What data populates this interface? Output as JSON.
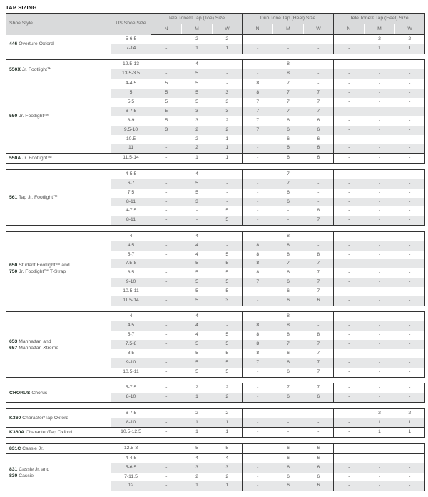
{
  "title": "TAP SIZING",
  "header": {
    "style": "Shoe Style",
    "size": "US Shoe Size",
    "groups": [
      "Tele Tone® Tap (Toe) Size",
      "Duo Tone Tap (Heel) Size",
      "Tele Tone® Tap (Heel) Size"
    ],
    "widths": [
      "N",
      "M",
      "W"
    ]
  },
  "blocks": [
    {
      "styles": [
        {
          "lines": [
            {
              "code": "446",
              "text": "Overture Oxford"
            }
          ],
          "rows": [
            {
              "size": "5-6.5",
              "v": [
                "-",
                "2",
                "2",
                "-",
                "-",
                "-",
                "-",
                "2",
                "2"
              ]
            },
            {
              "size": "7-14",
              "v": [
                "-",
                "1",
                "1",
                "-",
                "-",
                "-",
                "-",
                "1",
                "1"
              ]
            }
          ]
        }
      ]
    },
    {
      "styles": [
        {
          "lines": [
            {
              "code": "550X",
              "text": "Jr. Footlight™"
            }
          ],
          "rows": [
            {
              "size": "12.5-13",
              "v": [
                "-",
                "4",
                "-",
                "-",
                "8",
                "-",
                "-",
                "-",
                "-"
              ]
            },
            {
              "size": "13.5-3.5",
              "v": [
                "-",
                "5",
                "-",
                "-",
                "8",
                "-",
                "-",
                "-",
                "-"
              ]
            }
          ]
        },
        {
          "lines": [
            {
              "code": "550",
              "text": "Jr. Footlight™"
            }
          ],
          "rows": [
            {
              "size": "4-4.5",
              "v": [
                "5",
                "5",
                "-",
                "8",
                "7",
                "-",
                "-",
                "-",
                "-"
              ]
            },
            {
              "size": "5",
              "v": [
                "5",
                "5",
                "3",
                "8",
                "7",
                "7",
                "-",
                "-",
                "-"
              ]
            },
            {
              "size": "5.5",
              "v": [
                "5",
                "5",
                "3",
                "7",
                "7",
                "7",
                "-",
                "-",
                "-"
              ]
            },
            {
              "size": "6-7.5",
              "v": [
                "5",
                "3",
                "3",
                "7",
                "7",
                "7",
                "-",
                "-",
                "-"
              ]
            },
            {
              "size": "8-9",
              "v": [
                "5",
                "3",
                "2",
                "7",
                "6",
                "6",
                "-",
                "-",
                "-"
              ]
            },
            {
              "size": "9.5-10",
              "v": [
                "3",
                "2",
                "2",
                "7",
                "6",
                "6",
                "-",
                "-",
                "-"
              ]
            },
            {
              "size": "10.5",
              "v": [
                "-",
                "2",
                "1",
                "-",
                "6",
                "6",
                "-",
                "-",
                "-"
              ]
            },
            {
              "size": "11",
              "v": [
                "-",
                "2",
                "1",
                "-",
                "6",
                "6",
                "-",
                "-",
                "-"
              ]
            }
          ]
        },
        {
          "lines": [
            {
              "code": "550A",
              "text": "Jr. Footlight™"
            }
          ],
          "rows": [
            {
              "size": "11.5-14",
              "v": [
                "-",
                "1",
                "1",
                "-",
                "6",
                "6",
                "-",
                "-",
                "-"
              ]
            }
          ]
        }
      ]
    },
    {
      "styles": [
        {
          "lines": [
            {
              "code": "561",
              "text": "Tap Jr. Footlight™"
            }
          ],
          "rows": [
            {
              "size": "4-5.5",
              "v": [
                "-",
                "4",
                "-",
                "-",
                "7",
                "-",
                "-",
                "-",
                "-"
              ]
            },
            {
              "size": "6-7",
              "v": [
                "-",
                "5",
                "-",
                "-",
                "7",
                "-",
                "-",
                "-",
                "-"
              ]
            },
            {
              "size": "7.5",
              "v": [
                "-",
                "5",
                "-",
                "-",
                "6",
                "-",
                "-",
                "-",
                "-"
              ]
            },
            {
              "size": "8-11",
              "v": [
                "-",
                "3",
                "-",
                "-",
                "6",
                "-",
                "-",
                "-",
                "-"
              ]
            },
            {
              "size": "4-7.5",
              "v": [
                "-",
                "-",
                "5",
                "-",
                "-",
                "8",
                "-",
                "-",
                "-"
              ]
            },
            {
              "size": "8-11",
              "v": [
                "-",
                "-",
                "5",
                "-",
                "-",
                "7",
                "-",
                "-",
                "-"
              ]
            }
          ]
        }
      ]
    },
    {
      "styles": [
        {
          "lines": [
            {
              "code": "650",
              "text": "Student Footlight™ and"
            },
            {
              "code": "750",
              "text": "Jr. Footlight™ T-Strap"
            }
          ],
          "rows": [
            {
              "size": "4",
              "v": [
                "-",
                "4",
                "-",
                "-",
                "8",
                "-",
                "-",
                "-",
                "-"
              ]
            },
            {
              "size": "4.5",
              "v": [
                "-",
                "4",
                "-",
                "8",
                "8",
                "-",
                "-",
                "-",
                "-"
              ]
            },
            {
              "size": "5-7",
              "v": [
                "-",
                "4",
                "5",
                "8",
                "8",
                "8",
                "-",
                "-",
                "-"
              ]
            },
            {
              "size": "7.5-8",
              "v": [
                "-",
                "5",
                "5",
                "8",
                "7",
                "7",
                "-",
                "-",
                "-"
              ]
            },
            {
              "size": "8.5",
              "v": [
                "-",
                "5",
                "5",
                "8",
                "6",
                "7",
                "-",
                "-",
                "-"
              ]
            },
            {
              "size": "9-10",
              "v": [
                "-",
                "5",
                "5",
                "7",
                "6",
                "7",
                "-",
                "-",
                "-"
              ]
            },
            {
              "size": "10.5-11",
              "v": [
                "-",
                "5",
                "5",
                "-",
                "6",
                "7",
                "-",
                "-",
                "-"
              ]
            },
            {
              "size": "11.5-14",
              "v": [
                "-",
                "5",
                "3",
                "-",
                "6",
                "6",
                "-",
                "-",
                "-"
              ]
            }
          ]
        }
      ]
    },
    {
      "styles": [
        {
          "lines": [
            {
              "code": "653",
              "text": "Manhattan and"
            },
            {
              "code": "657",
              "text": "Manhattan Xtreme"
            }
          ],
          "rows": [
            {
              "size": "4",
              "v": [
                "-",
                "4",
                "-",
                "-",
                "8",
                "-",
                "-",
                "-",
                "-"
              ]
            },
            {
              "size": "4.5",
              "v": [
                "-",
                "4",
                "-",
                "8",
                "8",
                "-",
                "-",
                "-",
                "-"
              ]
            },
            {
              "size": "5-7",
              "v": [
                "-",
                "4",
                "5",
                "8",
                "8",
                "8",
                "-",
                "-",
                "-"
              ]
            },
            {
              "size": "7.5-8",
              "v": [
                "-",
                "5",
                "5",
                "8",
                "7",
                "7",
                "-",
                "-",
                "-"
              ]
            },
            {
              "size": "8.5",
              "v": [
                "-",
                "5",
                "5",
                "8",
                "6",
                "7",
                "-",
                "-",
                "-"
              ]
            },
            {
              "size": "9-10",
              "v": [
                "-",
                "5",
                "5",
                "7",
                "6",
                "7",
                "-",
                "-",
                "-"
              ]
            },
            {
              "size": "10.5-11",
              "v": [
                "-",
                "5",
                "5",
                "-",
                "6",
                "7",
                "-",
                "-",
                "-"
              ]
            }
          ]
        }
      ]
    },
    {
      "styles": [
        {
          "lines": [
            {
              "code": "CHORUS",
              "text": "Chorus"
            }
          ],
          "rows": [
            {
              "size": "5-7.5",
              "v": [
                "-",
                "2",
                "2",
                "-",
                "7",
                "7",
                "-",
                "-",
                "-"
              ]
            },
            {
              "size": "8-10",
              "v": [
                "-",
                "1",
                "2",
                "-",
                "6",
                "6",
                "-",
                "-",
                "-"
              ]
            }
          ]
        }
      ]
    },
    {
      "styles": [
        {
          "lines": [
            {
              "code": "K360",
              "text": "Character/Tap Oxford"
            }
          ],
          "rows": [
            {
              "size": "6-7.5",
              "v": [
                "-",
                "2",
                "2",
                "-",
                "-",
                "-",
                "-",
                "2",
                "2"
              ]
            },
            {
              "size": "8-10",
              "v": [
                "-",
                "1",
                "1",
                "-",
                "-",
                "-",
                "-",
                "1",
                "1"
              ]
            }
          ]
        },
        {
          "lines": [
            {
              "code": "K360A",
              "text": "Character/Tap Oxford"
            }
          ],
          "rows": [
            {
              "size": "10.5-12.5",
              "v": [
                "-",
                "1",
                "1",
                "-",
                "-",
                "-",
                "-",
                "1",
                "1"
              ]
            }
          ]
        }
      ]
    },
    {
      "styles": [
        {
          "lines": [
            {
              "code": "831C",
              "text": "Cassie Jr."
            }
          ],
          "rows": [
            {
              "size": "12.5-3",
              "v": [
                "-",
                "5",
                "5",
                "-",
                "6",
                "6",
                "-",
                "-",
                "-"
              ]
            }
          ]
        },
        {
          "lines": [
            {
              "code": "831",
              "text": "Cassie Jr. and"
            },
            {
              "code": "830",
              "text": "Cassie"
            }
          ],
          "rows": [
            {
              "size": "4-4.5",
              "v": [
                "-",
                "4",
                "4",
                "-",
                "6",
                "6",
                "-",
                "-",
                "-"
              ]
            },
            {
              "size": "5-6.5",
              "v": [
                "-",
                "3",
                "3",
                "-",
                "6",
                "6",
                "-",
                "-",
                "-"
              ]
            },
            {
              "size": "7-11.5",
              "v": [
                "-",
                "2",
                "2",
                "-",
                "6",
                "6",
                "-",
                "-",
                "-"
              ]
            },
            {
              "size": "12",
              "v": [
                "-",
                "1",
                "1",
                "-",
                "6",
                "6",
                "-",
                "-",
                "-"
              ]
            }
          ]
        }
      ]
    }
  ]
}
